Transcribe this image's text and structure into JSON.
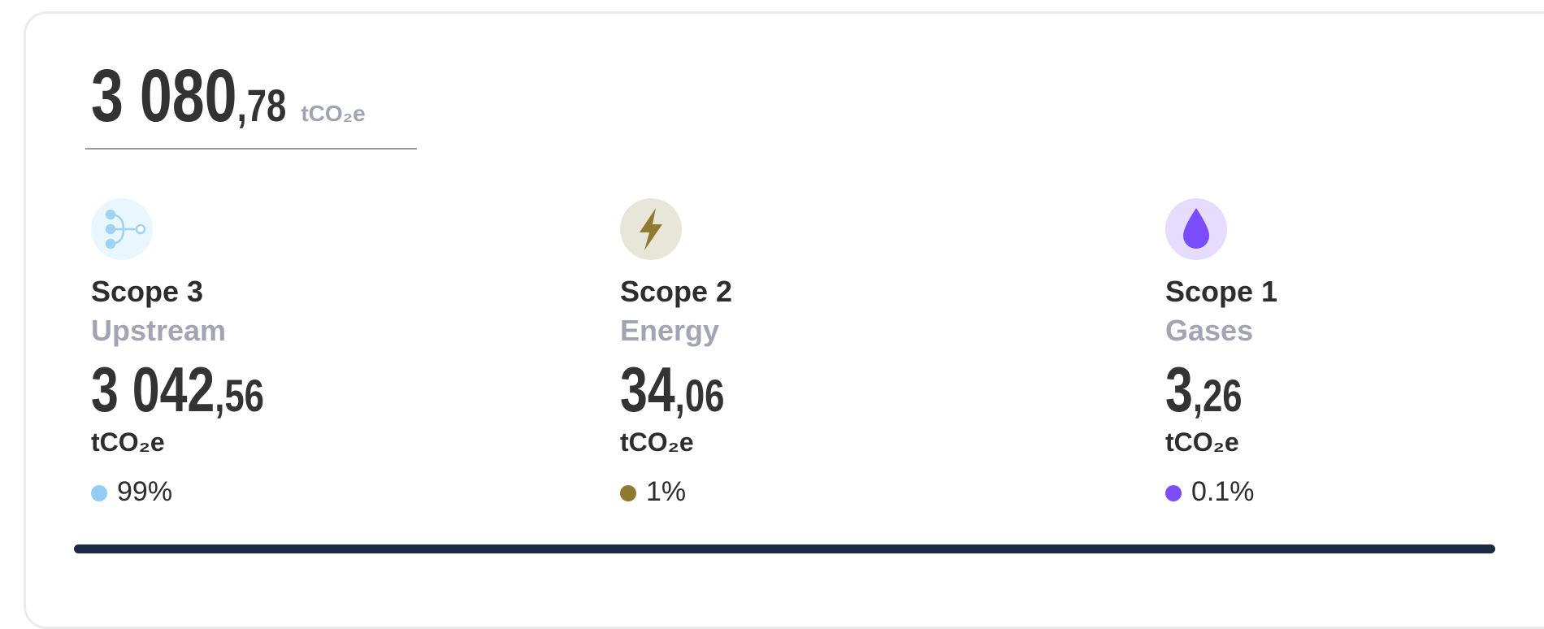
{
  "total": {
    "integer": "3 080",
    "decimal": ",78",
    "unit": "tCO₂e"
  },
  "scopes": [
    {
      "title": "Scope 3",
      "subtitle": "Upstream",
      "integer": "3 042",
      "decimal": ",56",
      "unit": "tCO₂e",
      "share": "99%",
      "color": "#93cdf2"
    },
    {
      "title": "Scope 2",
      "subtitle": "Energy",
      "integer": "34",
      "decimal": ",06",
      "unit": "tCO₂e",
      "share": "1%",
      "color": "#8f7a32"
    },
    {
      "title": "Scope 1",
      "subtitle": "Gases",
      "integer": "3",
      "decimal": ",26",
      "unit": "tCO₂e",
      "share": "0.1%",
      "color": "#7c4dff"
    }
  ]
}
